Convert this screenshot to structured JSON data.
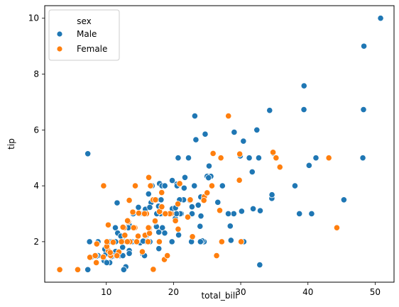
{
  "chart_data": {
    "type": "scatter",
    "title": "",
    "xlabel": "total_bill",
    "ylabel": "tip",
    "xlim": [
      0.84,
      52.81
    ],
    "ylim": [
      0.55,
      10.45
    ],
    "xticks": [
      10,
      20,
      30,
      40,
      50
    ],
    "yticks": [
      2,
      4,
      6,
      8,
      10
    ],
    "grid": false,
    "legend": {
      "title": "sex",
      "placement": "top-left",
      "entries": [
        "Male",
        "Female"
      ]
    },
    "series": [
      {
        "name": "Male",
        "color": "#1f77b4",
        "points": [
          [
            10.34,
            1.66
          ],
          [
            21.01,
            3.5
          ],
          [
            23.68,
            3.31
          ],
          [
            25.29,
            4.71
          ],
          [
            8.77,
            2.0
          ],
          [
            26.88,
            3.12
          ],
          [
            15.04,
            1.96
          ],
          [
            14.78,
            3.23
          ],
          [
            10.27,
            1.71
          ],
          [
            15.42,
            1.57
          ],
          [
            18.43,
            3.0
          ],
          [
            21.58,
            3.92
          ],
          [
            16.29,
            3.71
          ],
          [
            17.46,
            2.54
          ],
          [
            13.94,
            3.06
          ],
          [
            9.68,
            1.32
          ],
          [
            30.4,
            5.6
          ],
          [
            18.29,
            3.0
          ],
          [
            22.23,
            5.0
          ],
          [
            32.4,
            6.0
          ],
          [
            28.55,
            2.05
          ],
          [
            18.04,
            3.0
          ],
          [
            12.54,
            2.5
          ],
          [
            9.94,
            1.56
          ],
          [
            25.0,
            4.34
          ],
          [
            12.74,
            2.5
          ],
          [
            19.44,
            3.0
          ],
          [
            22.76,
            3.0
          ],
          [
            24.59,
            3.61
          ],
          [
            25.56,
            4.34
          ],
          [
            13.0,
            2.0
          ],
          [
            17.51,
            3.0
          ],
          [
            20.65,
            3.35
          ],
          [
            17.92,
            4.08
          ],
          [
            39.42,
            7.58
          ],
          [
            19.82,
            3.18
          ],
          [
            17.81,
            2.34
          ],
          [
            13.37,
            2.0
          ],
          [
            12.69,
            2.0
          ],
          [
            21.7,
            4.3
          ],
          [
            9.55,
            1.45
          ],
          [
            18.35,
            2.5
          ],
          [
            15.06,
            3.0
          ],
          [
            20.69,
            2.45
          ],
          [
            17.78,
            3.27
          ],
          [
            24.06,
            3.6
          ],
          [
            16.31,
            2.0
          ],
          [
            18.69,
            2.31
          ],
          [
            31.27,
            5.0
          ],
          [
            16.04,
            2.24
          ],
          [
            17.46,
            3.0
          ],
          [
            20.29,
            3.21
          ],
          [
            15.77,
            2.0
          ],
          [
            39.4,
            6.73
          ],
          [
            8.77,
            1.5
          ],
          [
            48.27,
            6.73
          ],
          [
            11.38,
            1.65
          ],
          [
            20.27,
            2.83
          ],
          [
            10.51,
            1.25
          ],
          [
            17.92,
            3.08
          ],
          [
            27.2,
            4.0
          ],
          [
            22.76,
            3.0
          ],
          [
            17.29,
            2.71
          ],
          [
            19.44,
            3.0
          ],
          [
            16.66,
            3.4
          ],
          [
            10.07,
            1.83
          ],
          [
            32.68,
            5.0
          ],
          [
            15.98,
            2.03
          ],
          [
            34.83,
            5.17
          ],
          [
            13.03,
            2.0
          ],
          [
            18.28,
            4.0
          ],
          [
            24.71,
            5.85
          ],
          [
            21.16,
            3.0
          ],
          [
            28.97,
            3.0
          ],
          [
            22.49,
            3.5
          ],
          [
            5.75,
            1.0
          ],
          [
            16.32,
            4.3
          ],
          [
            22.75,
            3.25
          ],
          [
            40.17,
            4.73
          ],
          [
            27.28,
            4.0
          ],
          [
            12.03,
            1.5
          ],
          [
            21.01,
            3.0
          ],
          [
            12.46,
            1.5
          ],
          [
            11.35,
            2.5
          ],
          [
            15.38,
            3.0
          ],
          [
            44.3,
            2.5
          ],
          [
            22.42,
            3.48
          ],
          [
            20.92,
            4.08
          ],
          [
            15.36,
            1.64
          ],
          [
            20.49,
            4.06
          ],
          [
            25.21,
            4.29
          ],
          [
            18.24,
            3.76
          ],
          [
            14.31,
            4.0
          ],
          [
            14.0,
            3.0
          ],
          [
            7.25,
            1.0
          ],
          [
            38.07,
            4.0
          ],
          [
            23.95,
            2.55
          ],
          [
            25.71,
            4.0
          ],
          [
            17.31,
            3.5
          ],
          [
            29.93,
            5.07
          ],
          [
            10.65,
            1.5
          ],
          [
            12.43,
            1.8
          ],
          [
            24.08,
            2.92
          ],
          [
            11.69,
            2.31
          ],
          [
            13.42,
            1.68
          ],
          [
            14.26,
            2.5
          ],
          [
            15.95,
            2.0
          ],
          [
            12.48,
            2.52
          ],
          [
            29.8,
            4.2
          ],
          [
            8.52,
            1.48
          ],
          [
            14.52,
            2.0
          ],
          [
            11.38,
            2.0
          ],
          [
            22.82,
            2.18
          ],
          [
            19.08,
            1.5
          ],
          [
            20.27,
            2.83
          ],
          [
            11.17,
            1.5
          ],
          [
            12.26,
            2.0
          ],
          [
            18.26,
            3.25
          ],
          [
            8.51,
            1.25
          ],
          [
            10.33,
            2.0
          ],
          [
            14.15,
            2.0
          ],
          [
            16.0,
            2.0
          ],
          [
            13.16,
            2.75
          ],
          [
            17.47,
            3.5
          ],
          [
            34.3,
            6.7
          ],
          [
            41.19,
            5.0
          ],
          [
            27.05,
            5.0
          ],
          [
            16.43,
            2.3
          ],
          [
            8.35,
            1.5
          ],
          [
            18.64,
            1.36
          ],
          [
            11.87,
            1.63
          ],
          [
            9.78,
            1.73
          ],
          [
            7.51,
            2.0
          ],
          [
            14.07,
            2.5
          ],
          [
            13.13,
            2.0
          ],
          [
            17.26,
            2.74
          ],
          [
            24.55,
            2.0
          ],
          [
            19.77,
            2.0
          ],
          [
            29.85,
            5.14
          ],
          [
            48.17,
            5.0
          ],
          [
            25.0,
            3.75
          ],
          [
            13.39,
            2.61
          ],
          [
            16.49,
            2.0
          ],
          [
            21.5,
            3.5
          ],
          [
            12.66,
            2.5
          ],
          [
            16.21,
            2.0
          ],
          [
            13.81,
            2.0
          ],
          [
            17.51,
            3.0
          ],
          [
            24.52,
            3.48
          ],
          [
            20.76,
            2.24
          ],
          [
            31.71,
            4.5
          ],
          [
            10.59,
            1.61
          ],
          [
            10.63,
            2.0
          ],
          [
            50.81,
            10.0
          ],
          [
            15.81,
            3.16
          ],
          [
            7.25,
            5.15
          ],
          [
            31.85,
            3.18
          ],
          [
            16.82,
            4.0
          ],
          [
            32.9,
            3.11
          ],
          [
            17.89,
            2.0
          ],
          [
            14.48,
            2.0
          ],
          [
            34.63,
            3.55
          ],
          [
            34.65,
            3.68
          ],
          [
            23.33,
            5.65
          ],
          [
            45.35,
            3.5
          ],
          [
            23.17,
            6.5
          ],
          [
            40.55,
            3.0
          ],
          [
            20.69,
            5.0
          ],
          [
            20.9,
            3.5
          ],
          [
            30.46,
            2.0
          ],
          [
            18.15,
            3.5
          ],
          [
            23.1,
            4.0
          ],
          [
            15.69,
            1.5
          ],
          [
            19.81,
            4.19
          ],
          [
            28.44,
            2.56
          ],
          [
            15.48,
            2.02
          ],
          [
            16.58,
            4.0
          ],
          [
            7.56,
            1.44
          ],
          [
            10.34,
            2.0
          ],
          [
            43.11,
            5.0
          ],
          [
            13.0,
            2.0
          ],
          [
            13.51,
            2.0
          ],
          [
            18.71,
            4.0
          ],
          [
            12.74,
            2.01
          ],
          [
            13.0,
            2.0
          ],
          [
            16.4,
            2.5
          ],
          [
            20.53,
            4.0
          ],
          [
            16.47,
            3.23
          ],
          [
            26.59,
            3.41
          ],
          [
            38.73,
            3.0
          ],
          [
            24.27,
            2.03
          ],
          [
            12.76,
            2.23
          ],
          [
            30.06,
            2.0
          ],
          [
            25.89,
            5.16
          ],
          [
            48.33,
            9.0
          ],
          [
            13.27,
            2.5
          ],
          [
            28.17,
            6.5
          ],
          [
            12.9,
            1.1
          ],
          [
            28.15,
            3.0
          ],
          [
            11.59,
            1.5
          ],
          [
            7.74,
            1.44
          ],
          [
            30.14,
            3.09
          ],
          [
            12.16,
            2.2
          ],
          [
            13.42,
            3.48
          ],
          [
            8.58,
            1.92
          ],
          [
            15.98,
            3.0
          ],
          [
            13.42,
            1.58
          ],
          [
            16.27,
            2.5
          ],
          [
            10.09,
            2.0
          ],
          [
            20.45,
            3.0
          ],
          [
            13.28,
            2.72
          ],
          [
            22.12,
            2.88
          ],
          [
            24.01,
            2.0
          ],
          [
            15.69,
            3.0
          ],
          [
            11.61,
            3.39
          ],
          [
            10.77,
            1.47
          ],
          [
            15.53,
            3.0
          ],
          [
            10.07,
            1.25
          ],
          [
            12.6,
            1.0
          ],
          [
            32.83,
            1.17
          ],
          [
            29.03,
            5.92
          ],
          [
            22.67,
            2.0
          ],
          [
            17.82,
            1.75
          ]
        ]
      },
      {
        "name": "Female",
        "color": "#ff7f0e",
        "points": [
          [
            16.99,
            1.01
          ],
          [
            24.59,
            3.61
          ],
          [
            35.26,
            5.0
          ],
          [
            14.83,
            3.02
          ],
          [
            10.33,
            1.67
          ],
          [
            16.97,
            3.5
          ],
          [
            20.29,
            2.75
          ],
          [
            15.77,
            2.23
          ],
          [
            19.65,
            3.0
          ],
          [
            26.41,
            1.5
          ],
          [
            10.29,
            2.6
          ],
          [
            34.81,
            5.2
          ],
          [
            16.45,
            2.47
          ],
          [
            3.07,
            1.0
          ],
          [
            18.78,
            3.0
          ],
          [
            11.87,
            1.63
          ],
          [
            44.3,
            2.5
          ],
          [
            25.0,
            3.75
          ],
          [
            14.73,
            2.2
          ],
          [
            10.07,
            1.83
          ],
          [
            22.12,
            2.88
          ],
          [
            9.6,
            4.0
          ],
          [
            43.11,
            5.0
          ],
          [
            13.42,
            3.48
          ],
          [
            14.26,
            2.5
          ],
          [
            16.43,
            2.3
          ],
          [
            13.51,
            2.0
          ],
          [
            7.56,
            1.44
          ],
          [
            13.0,
            2.0
          ],
          [
            16.58,
            4.0
          ],
          [
            11.59,
            1.5
          ],
          [
            13.28,
            2.72
          ],
          [
            16.4,
            2.5
          ],
          [
            12.54,
            2.5
          ],
          [
            12.76,
            2.23
          ],
          [
            20.92,
            4.08
          ],
          [
            18.24,
            3.76
          ],
          [
            14.31,
            4.0
          ],
          [
            15.98,
            3.0
          ],
          [
            19.44,
            3.0
          ],
          [
            8.51,
            1.25
          ],
          [
            10.09,
            2.0
          ],
          [
            14.07,
            2.5
          ],
          [
            13.94,
            3.06
          ],
          [
            15.69,
            3.0
          ],
          [
            18.64,
            1.36
          ],
          [
            16.21,
            2.0
          ],
          [
            11.02,
            1.98
          ],
          [
            12.66,
            2.5
          ],
          [
            17.92,
            3.08
          ],
          [
            8.58,
            1.92
          ],
          [
            10.65,
            1.5
          ],
          [
            13.13,
            2.0
          ],
          [
            12.48,
            2.52
          ],
          [
            29.85,
            5.14
          ],
          [
            26.88,
            3.12
          ],
          [
            25.71,
            4.0
          ],
          [
            17.89,
            2.0
          ],
          [
            27.18,
            2.0
          ],
          [
            22.82,
            2.18
          ],
          [
            18.78,
            3.0
          ],
          [
            10.59,
            1.61
          ],
          [
            18.26,
            3.25
          ],
          [
            22.49,
            3.5
          ],
          [
            15.36,
            1.64
          ],
          [
            20.69,
            2.45
          ],
          [
            24.52,
            3.48
          ],
          [
            35.83,
            4.67
          ],
          [
            17.31,
            3.5
          ],
          [
            25.89,
            5.16
          ],
          [
            16.27,
            2.5
          ],
          [
            28.17,
            6.5
          ],
          [
            30.06,
            2.0
          ],
          [
            12.26,
            2.0
          ],
          [
            19.08,
            1.5
          ],
          [
            16.32,
            4.3
          ],
          [
            5.75,
            1.0
          ],
          [
            9.55,
            1.45
          ],
          [
            29.8,
            4.2
          ],
          [
            20.65,
            3.35
          ],
          [
            27.05,
            5.0
          ],
          [
            16.99,
            1.01
          ],
          [
            14.52,
            2.0
          ],
          [
            8.35,
            1.5
          ],
          [
            13.16,
            2.75
          ],
          [
            17.26,
            2.74
          ]
        ]
      }
    ]
  }
}
